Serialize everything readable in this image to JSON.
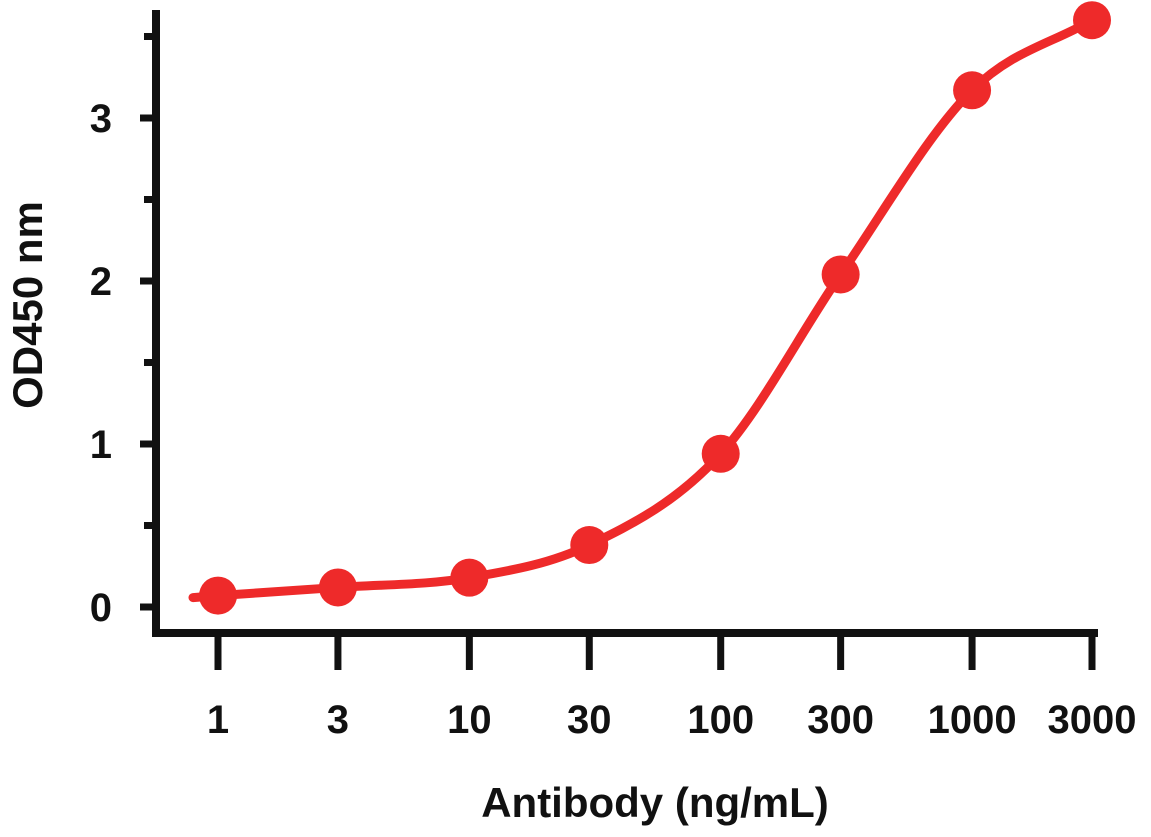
{
  "chart_data": {
    "type": "line",
    "title": "",
    "xlabel": "Antibody (ng/mL)",
    "ylabel": "OD450 nm",
    "x_scale": "log",
    "x_ticks": [
      "1",
      "3",
      "10",
      "30",
      "100",
      "300",
      "1000",
      "3000"
    ],
    "y_ticks": [
      "0",
      "1",
      "2",
      "3"
    ],
    "ylim": [
      0,
      3.6
    ],
    "grid": false,
    "legend": "none",
    "color": "#ee2a2a",
    "series": [
      {
        "x": [
          1,
          3,
          10,
          30,
          100,
          300,
          1000,
          3000
        ],
        "y": [
          0.07,
          0.12,
          0.18,
          0.38,
          0.94,
          2.04,
          3.17,
          3.6
        ]
      }
    ]
  }
}
